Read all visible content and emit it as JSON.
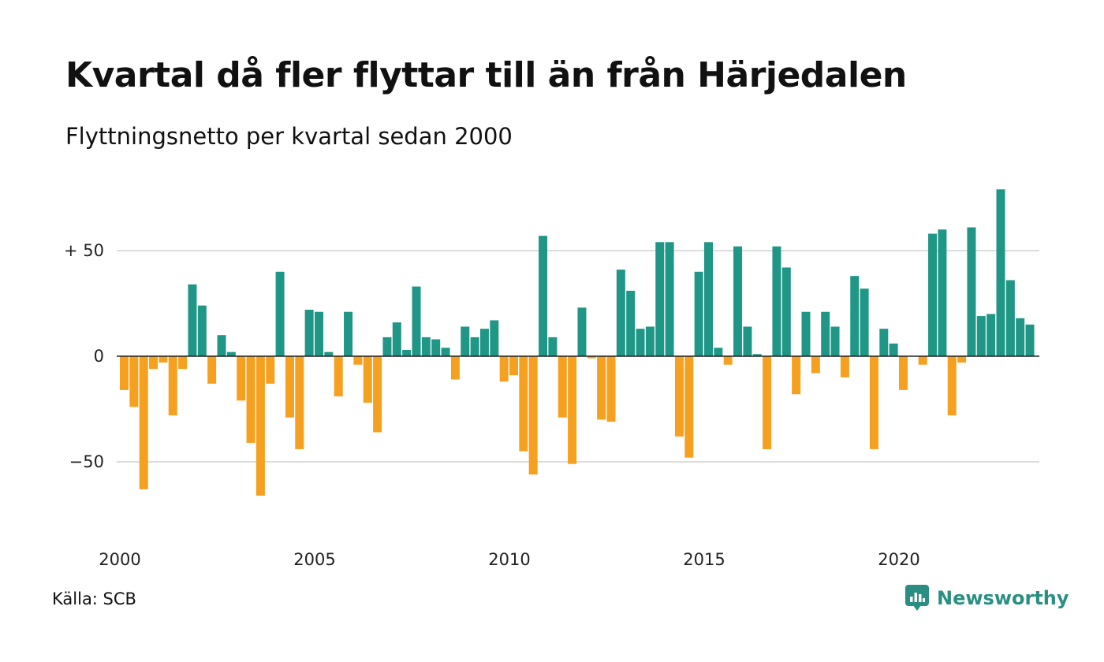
{
  "header": {
    "title": "Kvartal då fler flyttar till än från Härjedalen",
    "subtitle": "Flyttningsnetto per kvartal sedan 2000"
  },
  "footer": {
    "source": "Källa: SCB",
    "brand": "Newsworthy"
  },
  "colors": {
    "positive": "#1f9686",
    "negative": "#f5a01e",
    "brand": "#2a8f82"
  },
  "icons": {
    "brand_logo": "newsworthy-logo-icon"
  },
  "chart_data": {
    "type": "bar",
    "title": "Kvartal då fler flyttar till än från Härjedalen",
    "subtitle": "Flyttningsnetto per kvartal sedan 2000",
    "ylim": [
      -80,
      82
    ],
    "yticks": [
      {
        "value": 50,
        "label": "+ 50"
      },
      {
        "value": 0,
        "label": "0"
      },
      {
        "value": -50,
        "label": "−50"
      }
    ],
    "xticks": [
      {
        "year": 2000,
        "label": "2000"
      },
      {
        "year": 2005,
        "label": "2005"
      },
      {
        "year": 2010,
        "label": "2010"
      },
      {
        "year": 2015,
        "label": "2015"
      },
      {
        "year": 2020,
        "label": "2020"
      }
    ],
    "grid": true,
    "start_year": 2000,
    "start_quarter": 1,
    "values": [
      -16,
      -24,
      -63,
      -6,
      -3,
      -28,
      -6,
      34,
      24,
      -13,
      10,
      2,
      -21,
      -41,
      -66,
      -13,
      40,
      -29,
      -44,
      22,
      21,
      2,
      -19,
      21,
      -4,
      -22,
      -36,
      9,
      16,
      3,
      33,
      9,
      8,
      4,
      -11,
      14,
      9,
      13,
      17,
      -12,
      -9,
      -45,
      -56,
      57,
      9,
      -29,
      -51,
      23,
      -1,
      -30,
      -31,
      41,
      31,
      13,
      14,
      54,
      54,
      -38,
      -48,
      40,
      54,
      4,
      -4,
      52,
      14,
      1,
      -44,
      52,
      42,
      -18,
      21,
      -8,
      21,
      14,
      -10,
      38,
      32,
      -44,
      13,
      6,
      -16,
      0,
      -4,
      58,
      60,
      -28,
      -3,
      61,
      19,
      20,
      79,
      36,
      18,
      15
    ]
  }
}
